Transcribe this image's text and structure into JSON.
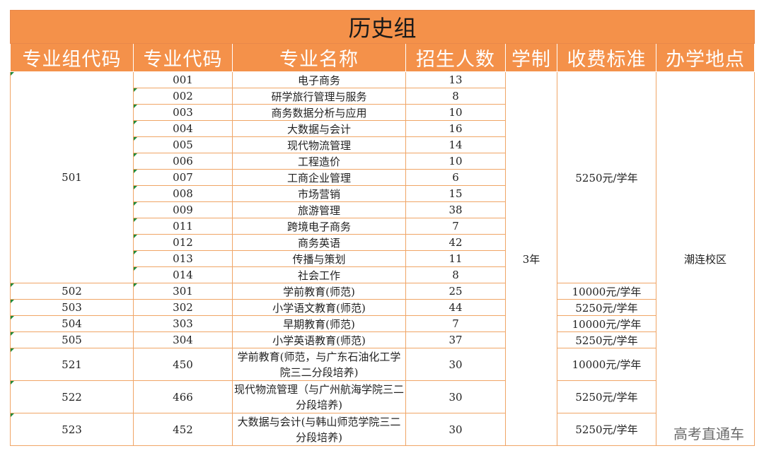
{
  "table": {
    "title": "历史组",
    "headers": [
      "专业组代码",
      "专业代码",
      "专业名称",
      "招生人数",
      "学制",
      "收费标准",
      "办学地点"
    ],
    "duration": "3年",
    "location": "潮连校区",
    "group_501": {
      "group_code": "501",
      "fee": "5250元/学年",
      "rows": [
        {
          "code": "001",
          "name": "电子商务",
          "count": "13"
        },
        {
          "code": "002",
          "name": "研学旅行管理与服务",
          "count": "8"
        },
        {
          "code": "003",
          "name": "商务数据分析与应用",
          "count": "10"
        },
        {
          "code": "004",
          "name": "大数据与会计",
          "count": "16"
        },
        {
          "code": "005",
          "name": "现代物流管理",
          "count": "14"
        },
        {
          "code": "006",
          "name": "工程造价",
          "count": "10"
        },
        {
          "code": "007",
          "name": "工商企业管理",
          "count": "6"
        },
        {
          "code": "008",
          "name": "市场营销",
          "count": "15"
        },
        {
          "code": "009",
          "name": "旅游管理",
          "count": "38"
        },
        {
          "code": "011",
          "name": "跨境电子商务",
          "count": "7"
        },
        {
          "code": "012",
          "name": "商务英语",
          "count": "42"
        },
        {
          "code": "013",
          "name": "传播与策划",
          "count": "11"
        },
        {
          "code": "014",
          "name": "社会工作",
          "count": "8"
        }
      ]
    },
    "other_rows": [
      {
        "group_code": "502",
        "code": "301",
        "name": "学前教育(师范)",
        "count": "25",
        "fee": "10000元/学年"
      },
      {
        "group_code": "503",
        "code": "302",
        "name": "小学语文教育(师范)",
        "count": "44",
        "fee": "5250元/学年"
      },
      {
        "group_code": "504",
        "code": "303",
        "name": "早期教育(师范)",
        "count": "7",
        "fee": "10000元/学年"
      },
      {
        "group_code": "505",
        "code": "304",
        "name": "小学英语教育(师范)",
        "count": "37",
        "fee": "5250元/学年"
      },
      {
        "group_code": "521",
        "code": "450",
        "name": "学前教育(师范，与广东石油化工学院三二分段培养)",
        "count": "30",
        "fee": "10000元/学年"
      },
      {
        "group_code": "522",
        "code": "466",
        "name": "现代物流管理（与广州航海学院三二分段培养)",
        "count": "30",
        "fee": "5250元/学年"
      },
      {
        "group_code": "523",
        "code": "452",
        "name": "大数据与会计(与韩山师范学院三二分段培养)",
        "count": "30",
        "fee": "5250元/学年"
      }
    ]
  },
  "watermark": "高考直通车"
}
